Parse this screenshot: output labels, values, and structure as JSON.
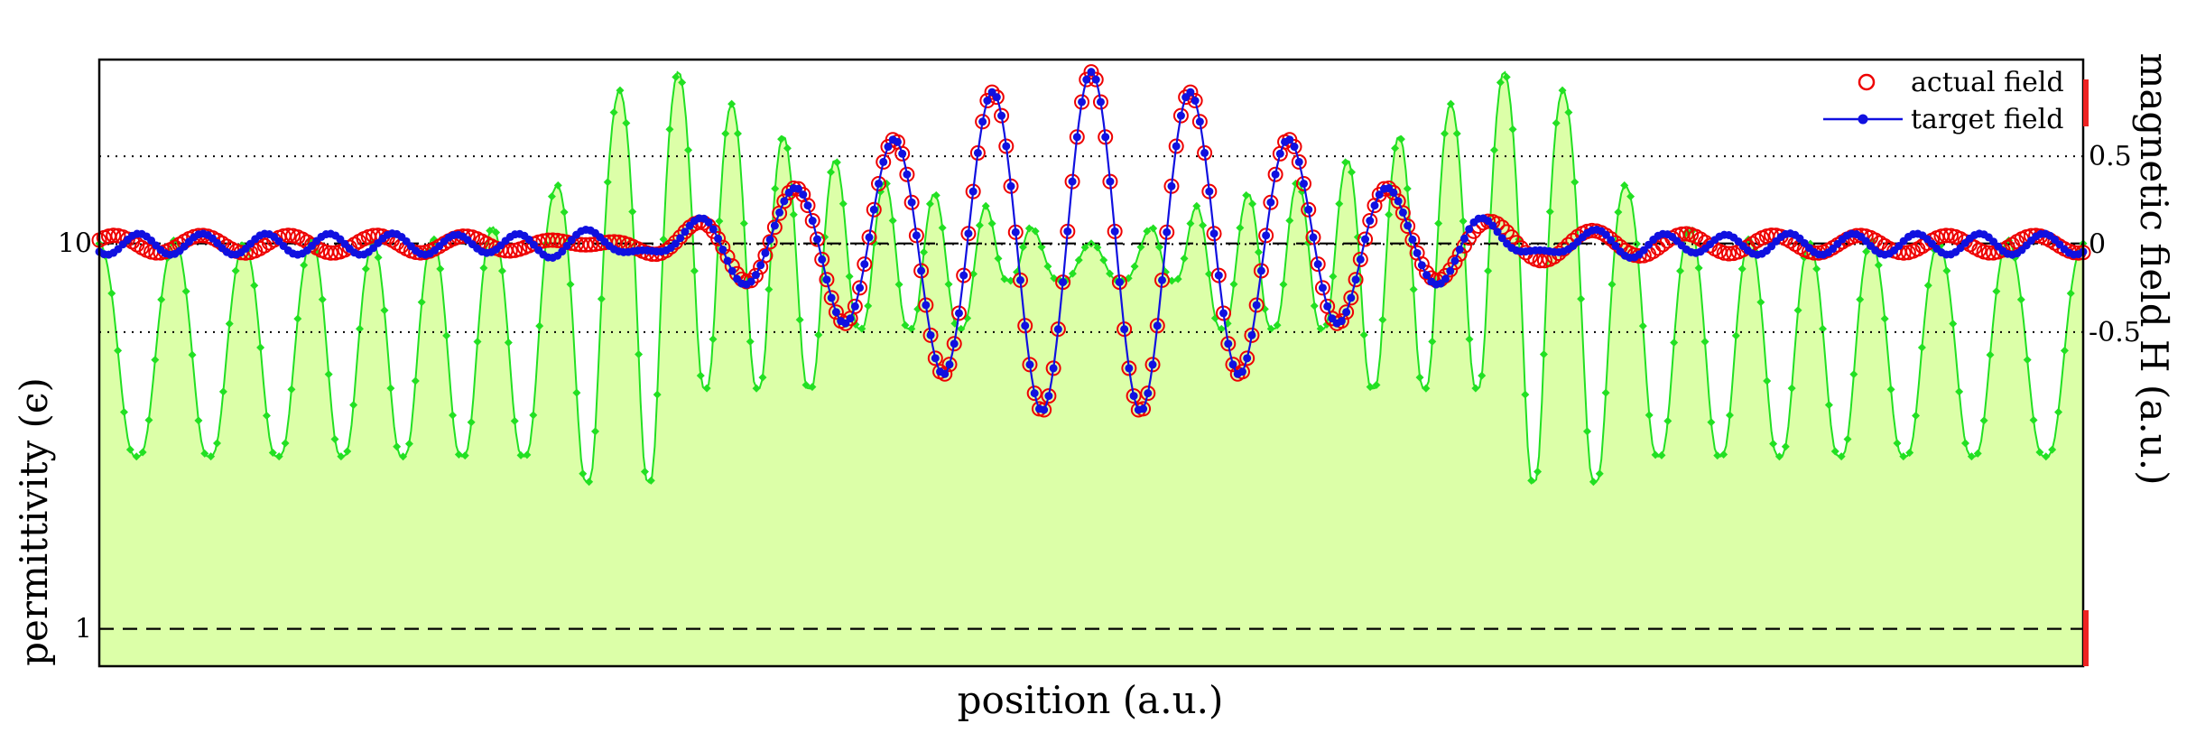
{
  "chart_data": {
    "type": "line",
    "xlabel": "position (a.u.)",
    "ylabel_left": "permittivity (ϵ)",
    "ylabel_right": "magnetic field H (a.u.)",
    "x_range": [
      0,
      1
    ],
    "left_axis": {
      "scale": "log",
      "ylim": [
        0.8,
        30
      ],
      "ticks": [
        1,
        10
      ],
      "tick_labels": [
        "1",
        "10"
      ],
      "reference_lines": [
        1,
        10
      ],
      "reference_style": "dashed"
    },
    "right_axis": {
      "ylim": [
        -2.4,
        1.05
      ],
      "ticks": [
        -0.5,
        0,
        0.5
      ],
      "tick_labels": [
        "-0.5",
        "0",
        "0.5"
      ],
      "gridlines": [
        -0.5,
        0,
        0.5
      ],
      "grid_style": "dotted"
    },
    "legend": {
      "placement": "top-right",
      "entries": [
        "actual field",
        "target field"
      ]
    },
    "field_model": {
      "carrier_period": 0.05,
      "center": 0.5,
      "main_amplitude": 0.98,
      "main_width": 0.1,
      "background_amplitude": 0.06,
      "background_period": 0.032
    },
    "permittivity_model": {
      "base": 2.8,
      "peaks": [
        {
          "x": 0.0,
          "v": 10.0
        },
        {
          "x": 0.038,
          "v": 10.2
        },
        {
          "x": 0.073,
          "v": 10.0
        },
        {
          "x": 0.107,
          "v": 10.2
        },
        {
          "x": 0.138,
          "v": 10.0
        },
        {
          "x": 0.168,
          "v": 10.3
        },
        {
          "x": 0.198,
          "v": 11.0
        },
        {
          "x": 0.23,
          "v": 14.0
        },
        {
          "x": 0.262,
          "v": 25.0
        },
        {
          "x": 0.292,
          "v": 28.0
        },
        {
          "x": 0.319,
          "v": 23.0
        },
        {
          "x": 0.345,
          "v": 19.0
        },
        {
          "x": 0.371,
          "v": 16.5
        },
        {
          "x": 0.396,
          "v": 14.5
        },
        {
          "x": 0.421,
          "v": 13.5
        },
        {
          "x": 0.447,
          "v": 12.5
        },
        {
          "x": 0.47,
          "v": 11.0
        },
        {
          "x": 0.5,
          "v": 10.0
        },
        {
          "x": 0.53,
          "v": 11.0
        },
        {
          "x": 0.553,
          "v": 12.5
        },
        {
          "x": 0.579,
          "v": 13.5
        },
        {
          "x": 0.604,
          "v": 14.5
        },
        {
          "x": 0.629,
          "v": 16.5
        },
        {
          "x": 0.655,
          "v": 19.0
        },
        {
          "x": 0.681,
          "v": 23.0
        },
        {
          "x": 0.708,
          "v": 28.0
        },
        {
          "x": 0.738,
          "v": 25.0
        },
        {
          "x": 0.77,
          "v": 14.0
        },
        {
          "x": 0.802,
          "v": 11.0
        },
        {
          "x": 0.832,
          "v": 10.3
        },
        {
          "x": 0.862,
          "v": 10.0
        },
        {
          "x": 0.893,
          "v": 10.2
        },
        {
          "x": 0.927,
          "v": 10.0
        },
        {
          "x": 0.962,
          "v": 10.2
        },
        {
          "x": 1.0,
          "v": 10.0
        }
      ]
    },
    "colors": {
      "actual_field": "#ee0000",
      "target_field": "#1010e0",
      "permittivity_line": "#22e022",
      "permittivity_fill": "#dcffa8",
      "right_edge_marker": "#ee2222"
    }
  }
}
